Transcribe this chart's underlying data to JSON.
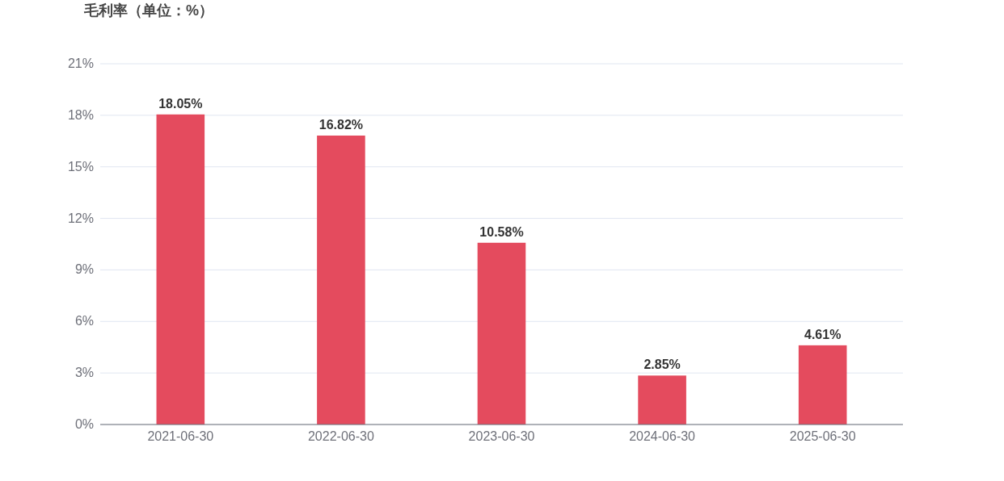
{
  "chart_data": {
    "type": "bar",
    "title": "毛利率（单位：%）",
    "categories": [
      "2021-06-30",
      "2022-06-30",
      "2023-06-30",
      "2024-06-30",
      "2025-06-30"
    ],
    "values": [
      18.05,
      16.82,
      10.58,
      2.85,
      4.61
    ],
    "value_labels": [
      "18.05%",
      "16.82%",
      "10.58%",
      "2.85%",
      "4.61%"
    ],
    "color": "#e44b5e",
    "ylim": [
      0,
      21
    ],
    "yticks": [
      {
        "value": 0,
        "label": "0%"
      },
      {
        "value": 3,
        "label": "3%"
      },
      {
        "value": 6,
        "label": "6%"
      },
      {
        "value": 9,
        "label": "9%"
      },
      {
        "value": 12,
        "label": "12%"
      },
      {
        "value": 15,
        "label": "15%"
      },
      {
        "value": 18,
        "label": "18%"
      },
      {
        "value": 21,
        "label": "21%"
      }
    ],
    "grid": "y"
  }
}
